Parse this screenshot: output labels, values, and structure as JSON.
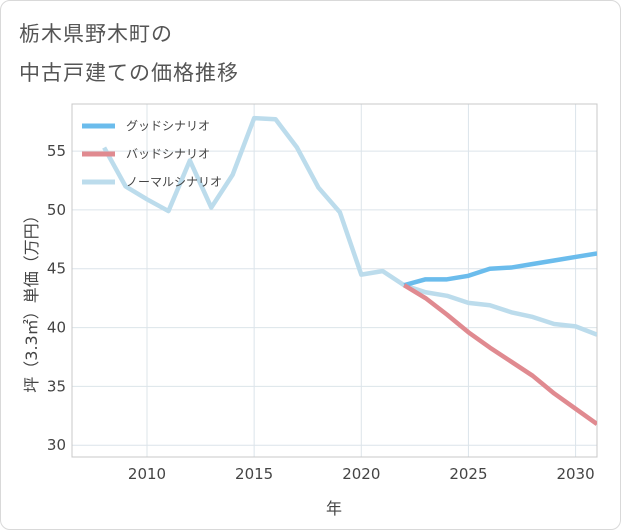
{
  "title": {
    "line1": "栃木県野木町の",
    "line2": "中古戸建ての価格推移"
  },
  "chart_data": {
    "type": "line",
    "xlabel": "年",
    "ylabel": "坪（3.3㎡）単価（万円）",
    "xlim": [
      2006.5,
      2031
    ],
    "ylim": [
      29,
      59
    ],
    "xticks": [
      2010,
      2015,
      2020,
      2025,
      2030
    ],
    "yticks": [
      30,
      35,
      40,
      45,
      50,
      55
    ],
    "grid": true,
    "legend_position": "top-left",
    "series": [
      {
        "name": "グッドシナリオ",
        "color": "#6bbcec",
        "x": [
          2022,
          2023,
          2024,
          2025,
          2026,
          2027,
          2028,
          2029,
          2030,
          2031
        ],
        "values": [
          43.6,
          44.1,
          44.1,
          44.4,
          45.0,
          45.1,
          45.4,
          45.7,
          46.0,
          46.3
        ]
      },
      {
        "name": "バッドシナリオ",
        "color": "#e08a90",
        "x": [
          2022,
          2023,
          2024,
          2025,
          2026,
          2027,
          2028,
          2029,
          2030,
          2031
        ],
        "values": [
          43.6,
          42.5,
          41.1,
          39.6,
          38.3,
          37.1,
          35.9,
          34.4,
          33.1,
          31.8
        ]
      },
      {
        "name": "ノーマルシナリオ",
        "color": "#bcdcec",
        "x": [
          2008,
          2009,
          2010,
          2011,
          2012,
          2013,
          2014,
          2015,
          2016,
          2017,
          2018,
          2019,
          2020,
          2021,
          2022,
          2023,
          2024,
          2025,
          2026,
          2027,
          2028,
          2029,
          2030,
          2031
        ],
        "values": [
          55.3,
          52.0,
          50.9,
          49.9,
          54.2,
          50.2,
          53.0,
          57.8,
          57.7,
          55.3,
          51.9,
          49.8,
          44.5,
          44.8,
          43.6,
          43.0,
          42.7,
          42.1,
          41.9,
          41.3,
          40.9,
          40.3,
          40.1,
          39.4
        ]
      }
    ]
  }
}
